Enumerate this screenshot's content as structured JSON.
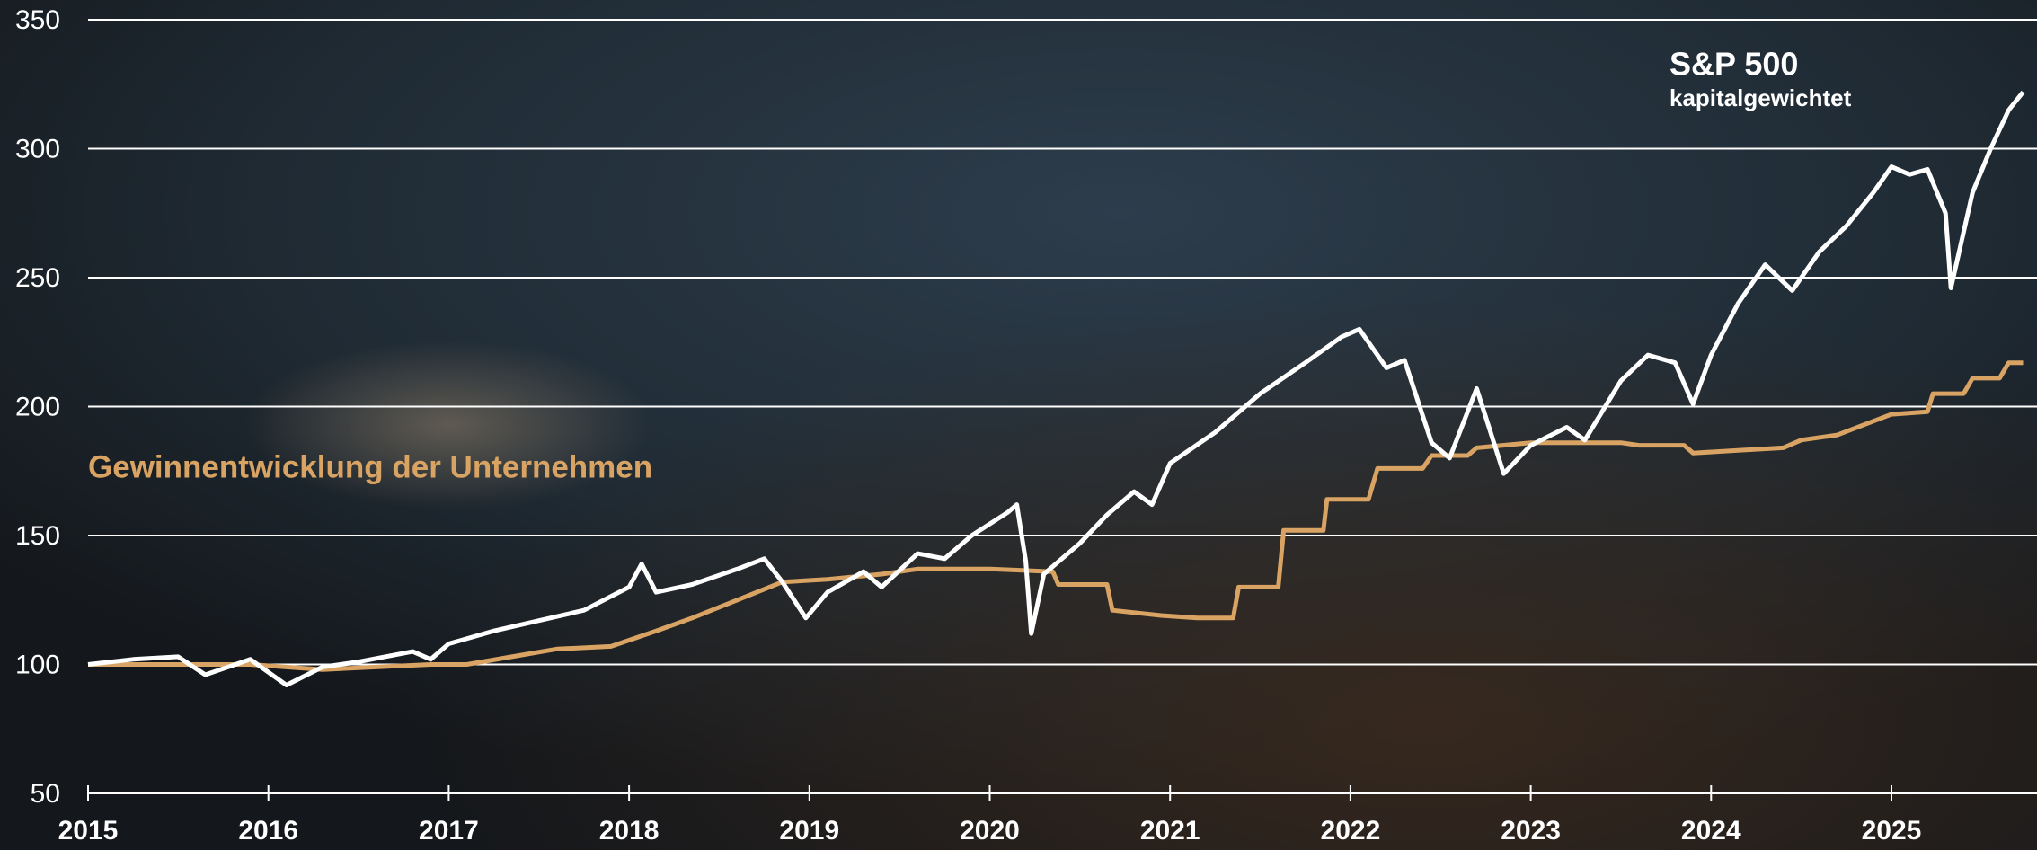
{
  "chart_data": {
    "type": "line",
    "annotations": [
      "kapitalgewichtet"
    ],
    "xlim": [
      2015,
      2025.73
    ],
    "xticks": [
      2015,
      2016,
      2017,
      2018,
      2019,
      2020,
      2021,
      2022,
      2023,
      2024,
      2025
    ],
    "ylim": [
      50,
      350
    ],
    "yticks": [
      50,
      100,
      150,
      200,
      250,
      300,
      350
    ],
    "grid": true,
    "series": [
      {
        "name": "S&P 500",
        "color": "#ffffff",
        "x": [
          2015.0,
          2015.25,
          2015.5,
          2015.65,
          2015.9,
          2016.1,
          2016.3,
          2016.5,
          2016.8,
          2016.9,
          2017.0,
          2017.25,
          2017.5,
          2017.75,
          2018.0,
          2018.07,
          2018.15,
          2018.35,
          2018.6,
          2018.75,
          2018.85,
          2018.98,
          2019.1,
          2019.3,
          2019.4,
          2019.6,
          2019.75,
          2019.9,
          2020.1,
          2020.15,
          2020.2,
          2020.23,
          2020.3,
          2020.5,
          2020.65,
          2020.8,
          2020.9,
          2021.0,
          2021.25,
          2021.5,
          2021.75,
          2021.95,
          2022.05,
          2022.2,
          2022.3,
          2022.45,
          2022.55,
          2022.7,
          2022.85,
          2023.0,
          2023.2,
          2023.3,
          2023.5,
          2023.65,
          2023.8,
          2023.9,
          2024.0,
          2024.15,
          2024.3,
          2024.45,
          2024.6,
          2024.75,
          2024.9,
          2025.0,
          2025.1,
          2025.2,
          2025.3,
          2025.33,
          2025.45,
          2025.55,
          2025.65,
          2025.73
        ],
        "values": [
          100,
          102,
          103,
          96,
          102,
          92,
          99,
          101,
          105,
          102,
          108,
          113,
          117,
          121,
          130,
          139,
          128,
          131,
          137,
          141,
          132,
          118,
          128,
          136,
          130,
          143,
          141,
          150,
          159,
          162,
          140,
          112,
          135,
          147,
          158,
          167,
          162,
          178,
          190,
          205,
          217,
          227,
          230,
          215,
          218,
          186,
          180,
          207,
          174,
          185,
          192,
          187,
          210,
          220,
          217,
          201,
          220,
          240,
          255,
          245,
          260,
          270,
          283,
          293,
          290,
          292,
          275,
          246,
          283,
          300,
          315,
          322
        ]
      },
      {
        "name": "Gewinnentwicklung der Unternehmen",
        "color": "#d9a463",
        "x": [
          2015.0,
          2015.9,
          2016.3,
          2016.9,
          2017.1,
          2017.35,
          2017.6,
          2017.9,
          2018.15,
          2018.35,
          2018.6,
          2018.85,
          2019.1,
          2019.4,
          2019.6,
          2020.0,
          2020.35,
          2020.38,
          2020.65,
          2020.68,
          2020.95,
          2021.15,
          2021.35,
          2021.38,
          2021.6,
          2021.63,
          2021.85,
          2021.87,
          2022.1,
          2022.15,
          2022.4,
          2022.45,
          2022.65,
          2022.7,
          2023.0,
          2023.5,
          2023.6,
          2023.85,
          2023.9,
          2024.15,
          2024.4,
          2024.5,
          2024.7,
          2024.85,
          2025.0,
          2025.2,
          2025.23,
          2025.4,
          2025.45,
          2025.6,
          2025.65,
          2025.73
        ],
        "values": [
          100,
          100,
          98,
          100,
          100,
          103,
          106,
          107,
          113,
          118,
          125,
          132,
          133,
          135,
          137,
          137,
          136,
          131,
          131,
          121,
          119,
          118,
          118,
          130,
          130,
          152,
          152,
          164,
          164,
          176,
          176,
          181,
          181,
          184,
          186,
          186,
          185,
          185,
          182,
          183,
          184,
          187,
          189,
          193,
          197,
          198,
          205,
          205,
          211,
          211,
          217,
          217
        ]
      }
    ]
  }
}
